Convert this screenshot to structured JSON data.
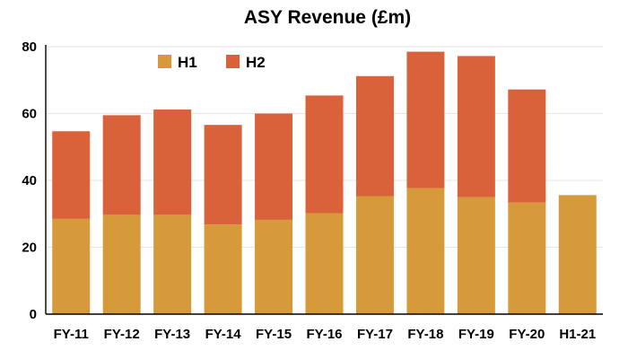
{
  "chart_data": {
    "type": "bar",
    "stacked": true,
    "title": "ASY Revenue (£m)",
    "xlabel": "",
    "ylabel": "",
    "categories": [
      "FY-11",
      "FY-12",
      "FY-13",
      "FY-14",
      "FY-15",
      "FY-16",
      "FY-17",
      "FY-18",
      "FY-19",
      "FY-20",
      "H1-21"
    ],
    "series": [
      {
        "name": "H1",
        "color": "#D79A3A",
        "values": [
          28.5,
          29.7,
          29.7,
          26.8,
          28.2,
          30.2,
          35.3,
          37.7,
          35.0,
          33.4,
          35.6
        ]
      },
      {
        "name": "H2",
        "color": "#D9623A",
        "values": [
          26.2,
          29.8,
          31.5,
          29.8,
          31.8,
          35.2,
          35.9,
          40.8,
          42.2,
          33.8,
          0
        ]
      }
    ],
    "ylim": [
      0,
      80
    ],
    "yticks": [
      0,
      20,
      40,
      60,
      80
    ],
    "grid": true,
    "legend_position": "top-left"
  }
}
